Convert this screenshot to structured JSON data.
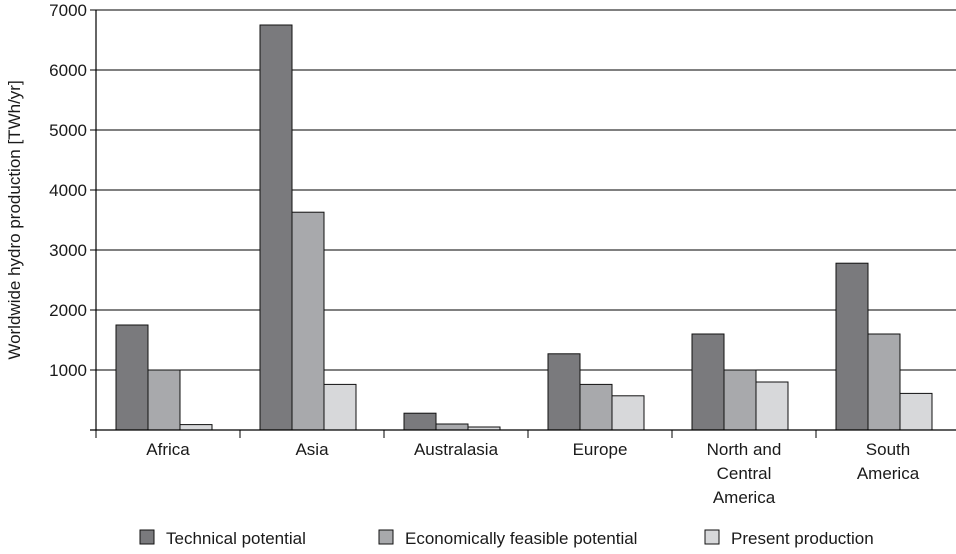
{
  "chart_data": {
    "type": "bar",
    "title": "",
    "xlabel": "",
    "ylabel": "Worldwide hydro production  [TWh/yr]",
    "ylim": [
      0,
      7000
    ],
    "yticks": [
      1000,
      2000,
      3000,
      4000,
      5000,
      6000,
      7000
    ],
    "grid": true,
    "legend_position": "bottom",
    "categories": [
      [
        "Africa"
      ],
      [
        "Asia"
      ],
      [
        "Australasia"
      ],
      [
        "Europe"
      ],
      [
        "North and",
        "Central",
        "America"
      ],
      [
        "South",
        "America"
      ]
    ],
    "series": [
      {
        "name": "Technical potential",
        "color": "#7a7a7d",
        "values": [
          1750,
          6750,
          280,
          1270,
          1600,
          2780
        ]
      },
      {
        "name": "Economically feasible potential",
        "color": "#a8a9ac",
        "values": [
          1000,
          3630,
          100,
          760,
          1000,
          1600
        ]
      },
      {
        "name": "Present production",
        "color": "#d7d8da",
        "values": [
          90,
          760,
          50,
          570,
          800,
          610
        ]
      }
    ]
  }
}
